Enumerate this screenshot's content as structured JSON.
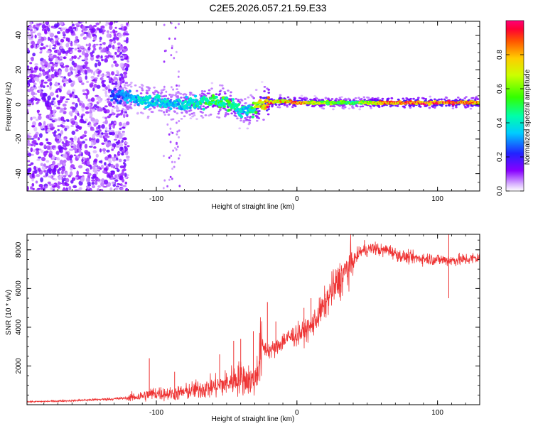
{
  "title": "C2E5.2026.057.21.59.E33",
  "chart_data": [
    {
      "type": "heatmap",
      "title": "C2E5.2026.057.21.59.E33",
      "xlabel": "Height of straight line (km)",
      "ylabel": "Frequency (Hz)",
      "xlim": [
        -192,
        130
      ],
      "ylim": [
        -50,
        48
      ],
      "xticks": [
        -100,
        0,
        100
      ],
      "yticks": [
        -40,
        -20,
        0,
        20,
        40
      ],
      "colorbar": {
        "label": "Normalized spectral amplitude",
        "range": [
          0,
          1
        ],
        "ticks": [
          0.0,
          0.2,
          0.4,
          0.6,
          0.8
        ]
      },
      "ridge": {
        "description": "spectral peak frequency vs height",
        "x": [
          -130,
          -120,
          -110,
          -100,
          -90,
          -80,
          -70,
          -60,
          -50,
          -40,
          -35,
          -30,
          -25,
          -20,
          -10,
          0,
          10,
          20,
          40,
          60,
          80,
          100,
          120,
          130
        ],
        "freq_hz": [
          5,
          4,
          3,
          2,
          0,
          0,
          1,
          2,
          1,
          -3,
          -5,
          -2,
          0,
          1,
          2,
          1,
          1,
          1,
          1,
          1,
          1,
          1,
          1,
          1
        ],
        "amplitude": [
          0.25,
          0.35,
          0.4,
          0.4,
          0.4,
          0.4,
          0.45,
          0.55,
          0.55,
          0.45,
          0.4,
          0.6,
          0.85,
          0.95,
          0.8,
          0.95,
          0.75,
          0.65,
          0.55,
          0.9,
          0.95,
          0.95,
          0.9,
          0.9
        ]
      }
    },
    {
      "type": "line",
      "xlabel": "Height of straight line (km)",
      "ylabel": "SNR (10 * v/v)",
      "xlim": [
        -192,
        130
      ],
      "ylim": [
        0,
        8800
      ],
      "xticks": [
        -100,
        0,
        100
      ],
      "yticks": [
        2000,
        4000,
        6000,
        8000
      ],
      "color": "#ee3333",
      "series": [
        {
          "name": "SNR",
          "x": [
            -192,
            -180,
            -170,
            -160,
            -150,
            -140,
            -130,
            -120,
            -110,
            -100,
            -90,
            -80,
            -70,
            -60,
            -50,
            -45,
            -40,
            -35,
            -30,
            -25,
            -20,
            -15,
            -10,
            -5,
            0,
            5,
            10,
            15,
            20,
            25,
            30,
            35,
            40,
            45,
            50,
            55,
            60,
            65,
            70,
            75,
            80,
            90,
            100,
            110,
            120,
            130
          ],
          "y": [
            150,
            170,
            190,
            210,
            240,
            270,
            300,
            350,
            450,
            600,
            550,
            650,
            800,
            900,
            1100,
            1300,
            1400,
            1300,
            1200,
            3000,
            2800,
            2900,
            3300,
            3500,
            3600,
            3800,
            4000,
            4600,
            5200,
            5900,
            6400,
            6900,
            7400,
            7900,
            8000,
            8100,
            7950,
            8000,
            7800,
            7650,
            7600,
            7550,
            7500,
            7450,
            7500,
            7600
          ]
        }
      ],
      "spikes": [
        {
          "x": -105,
          "y": 2400
        },
        {
          "x": -87,
          "y": 1700
        },
        {
          "x": -55,
          "y": 2600
        },
        {
          "x": -45,
          "y": 3300
        },
        {
          "x": -40,
          "y": 3400
        },
        {
          "x": -31,
          "y": 3800
        },
        {
          "x": -21,
          "y": 5300
        },
        {
          "x": -15,
          "y": 4300
        },
        {
          "x": 5,
          "y": 5000
        },
        {
          "x": 10,
          "y": 5500
        },
        {
          "x": 22,
          "y": 5700
        },
        {
          "x": 48,
          "y": 8500
        },
        {
          "x": 108,
          "y": 8800
        },
        {
          "x": 108,
          "y": 5500
        },
        {
          "x": 130,
          "y": 5400
        }
      ]
    }
  ]
}
